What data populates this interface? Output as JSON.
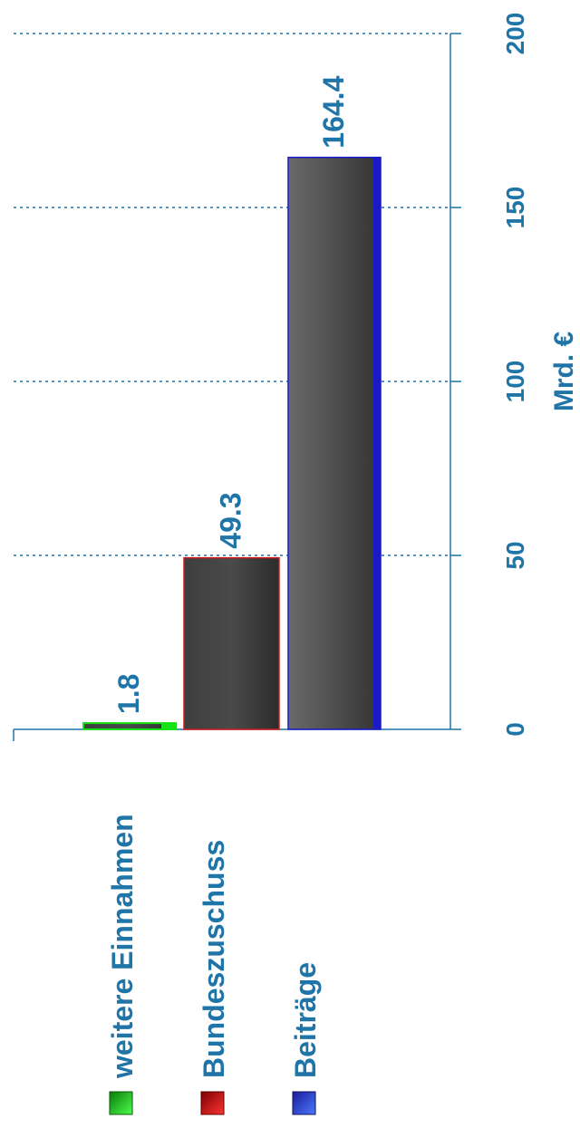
{
  "chart_data": {
    "type": "bar",
    "orientation": "horizontal",
    "categories": [
      "weitere Einnahmen",
      "Bundeszuschuss",
      "Beiträge"
    ],
    "values": [
      1.8,
      49.3,
      164.4
    ],
    "value_labels": [
      "1.8",
      "49.3",
      "164.4"
    ],
    "series_colors": [
      "#16e016",
      "#d11a1a",
      "#1a1ac8"
    ],
    "xlabel": "Mrd. €",
    "xlim": [
      0,
      200
    ],
    "xticks": [
      0,
      50,
      100,
      150,
      200
    ],
    "xtick_labels": [
      "0",
      "50",
      "100",
      "150",
      "200"
    ],
    "grid": true,
    "legend": {
      "placement": "bottom",
      "items": [
        {
          "label": "weitere Einnahmen",
          "color": "#16e016"
        },
        {
          "label": "Bundeszuschuss",
          "color": "#d11a1a"
        },
        {
          "label": "Beiträge",
          "color": "#1a1ac8"
        }
      ]
    },
    "text_color": "#1f74a8",
    "gridline_color": "#1f74a8"
  }
}
